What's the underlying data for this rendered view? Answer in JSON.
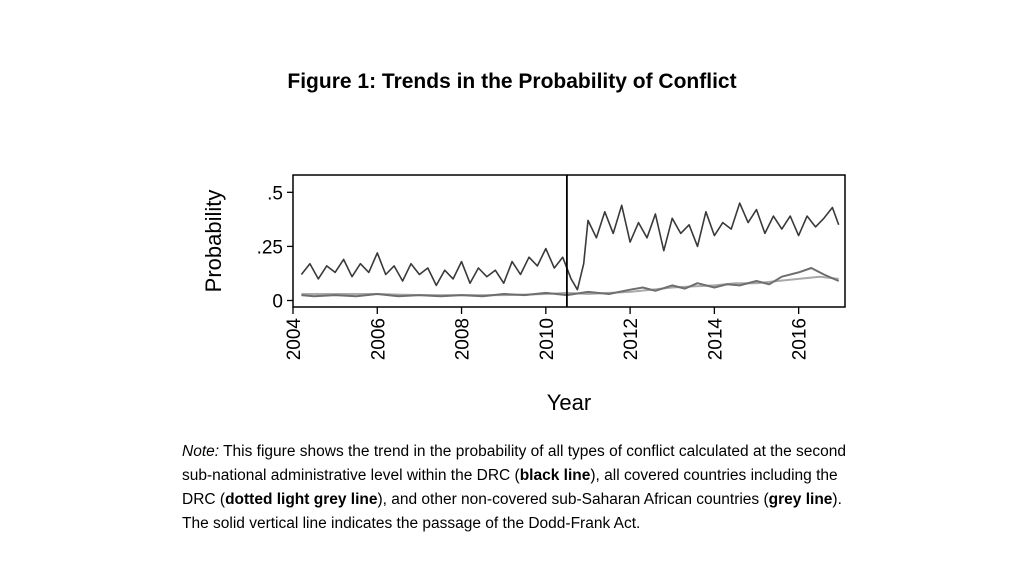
{
  "figure": {
    "title": "Figure 1: Trends in the Probability of Conflict"
  },
  "chart_data": {
    "type": "line",
    "title": "",
    "xlabel": "Year",
    "ylabel": "Probability",
    "xlim": [
      2004,
      2017.1
    ],
    "ylim": [
      -0.03,
      0.58
    ],
    "xticks": [
      2004,
      2006,
      2008,
      2010,
      2012,
      2014,
      2016
    ],
    "xtick_labels": [
      "2004",
      "2006",
      "2008",
      "2010",
      "2012",
      "2014",
      "2016"
    ],
    "yticks": [
      0,
      0.25,
      0.5
    ],
    "ytick_labels": [
      "0",
      ".25",
      ".5"
    ],
    "vertical_line_x": 2010.5,
    "grid": false,
    "series": [
      {
        "key": "drc",
        "color": "#3a3a3a",
        "x": [
          2004.2,
          2004.4,
          2004.6,
          2004.8,
          2005.0,
          2005.2,
          2005.4,
          2005.6,
          2005.8,
          2006.0,
          2006.2,
          2006.4,
          2006.6,
          2006.8,
          2007.0,
          2007.2,
          2007.4,
          2007.6,
          2007.8,
          2008.0,
          2008.2,
          2008.4,
          2008.6,
          2008.8,
          2009.0,
          2009.2,
          2009.4,
          2009.6,
          2009.8,
          2010.0,
          2010.2,
          2010.4,
          2010.6,
          2010.75,
          2010.9,
          2011.0,
          2011.2,
          2011.4,
          2011.6,
          2011.8,
          2012.0,
          2012.2,
          2012.4,
          2012.6,
          2012.8,
          2013.0,
          2013.2,
          2013.4,
          2013.6,
          2013.8,
          2014.0,
          2014.2,
          2014.4,
          2014.6,
          2014.8,
          2015.0,
          2015.2,
          2015.4,
          2015.6,
          2015.8,
          2016.0,
          2016.2,
          2016.4,
          2016.6,
          2016.8,
          2016.95
        ],
        "y": [
          0.12,
          0.17,
          0.1,
          0.16,
          0.13,
          0.19,
          0.11,
          0.17,
          0.13,
          0.22,
          0.12,
          0.16,
          0.09,
          0.17,
          0.12,
          0.15,
          0.07,
          0.14,
          0.1,
          0.18,
          0.08,
          0.15,
          0.11,
          0.14,
          0.08,
          0.18,
          0.12,
          0.2,
          0.16,
          0.24,
          0.15,
          0.2,
          0.1,
          0.05,
          0.17,
          0.37,
          0.29,
          0.41,
          0.31,
          0.44,
          0.27,
          0.36,
          0.29,
          0.4,
          0.23,
          0.38,
          0.31,
          0.35,
          0.25,
          0.41,
          0.3,
          0.36,
          0.33,
          0.45,
          0.36,
          0.42,
          0.31,
          0.39,
          0.33,
          0.39,
          0.3,
          0.39,
          0.34,
          0.38,
          0.43,
          0.35
        ]
      },
      {
        "key": "covered",
        "color": "#a9a9a9",
        "x": [
          2004.2,
          2005.0,
          2006.0,
          2007.0,
          2008.0,
          2009.0,
          2010.0,
          2010.5,
          2011.0,
          2011.5,
          2012.0,
          2012.5,
          2013.0,
          2013.5,
          2014.0,
          2014.5,
          2015.0,
          2015.5,
          2016.0,
          2016.5,
          2016.95
        ],
        "y": [
          0.03,
          0.03,
          0.03,
          0.025,
          0.025,
          0.025,
          0.03,
          0.035,
          0.03,
          0.035,
          0.04,
          0.05,
          0.06,
          0.065,
          0.07,
          0.08,
          0.08,
          0.09,
          0.1,
          0.11,
          0.1
        ]
      },
      {
        "key": "noncovered",
        "color": "#6e6e6e",
        "x": [
          2004.2,
          2004.5,
          2005.0,
          2005.5,
          2006.0,
          2006.5,
          2007.0,
          2007.5,
          2008.0,
          2008.5,
          2009.0,
          2009.5,
          2010.0,
          2010.5,
          2011.0,
          2011.5,
          2012.0,
          2012.3,
          2012.6,
          2013.0,
          2013.3,
          2013.6,
          2014.0,
          2014.3,
          2014.6,
          2015.0,
          2015.3,
          2015.6,
          2016.0,
          2016.3,
          2016.6,
          2016.95
        ],
        "y": [
          0.025,
          0.02,
          0.025,
          0.02,
          0.03,
          0.02,
          0.025,
          0.02,
          0.025,
          0.02,
          0.03,
          0.025,
          0.035,
          0.025,
          0.04,
          0.03,
          0.05,
          0.06,
          0.045,
          0.07,
          0.055,
          0.08,
          0.06,
          0.075,
          0.07,
          0.09,
          0.075,
          0.11,
          0.13,
          0.15,
          0.12,
          0.09
        ]
      }
    ]
  },
  "note": {
    "label": "Note:",
    "text1": " This figure shows the trend in the probability of all types of conflict calculated at the second sub-national administrative level within the DRC (",
    "bold1": "black line",
    "text2": "), all covered countries including the DRC (",
    "bold2": "dotted light grey line",
    "text3": "), and other non-covered sub-Saharan African countries (",
    "bold3": "grey line",
    "text4": "). The solid vertical line indicates the passage of the Dodd-Frank Act."
  }
}
